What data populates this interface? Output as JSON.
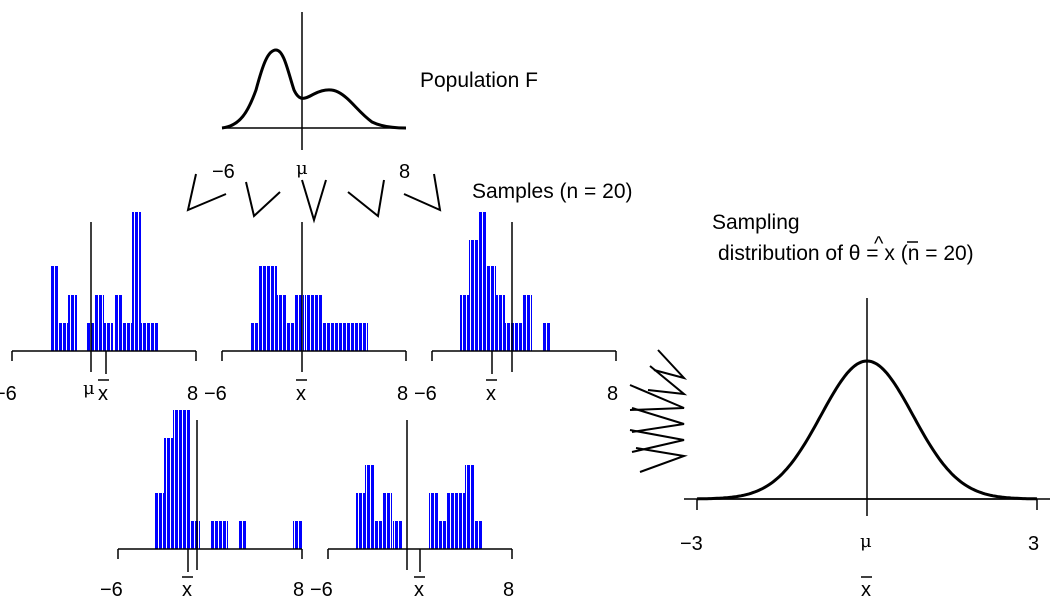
{
  "population": {
    "title": "Population F",
    "xmin_label": "−6",
    "xmax_label": "8",
    "center_label": "μ"
  },
  "samples_label": "Samples (n = 20)",
  "sampling": {
    "line1": "Sampling",
    "line2_pre": "distribution of ",
    "theta": "θ",
    "hat": "^",
    "eq": " = ",
    "xbar": "x",
    "line2_post": " (n = 20)",
    "xmin_label": "−3",
    "xmax_label": "3",
    "center_label": "μ",
    "xlabel": "x"
  },
  "hist_axis": {
    "min_label": "−6",
    "max_label": "8",
    "mu_label": "μ",
    "xbar_label": "x"
  },
  "colors": {
    "bars": "#0000ff",
    "ink": "#000000"
  }
}
